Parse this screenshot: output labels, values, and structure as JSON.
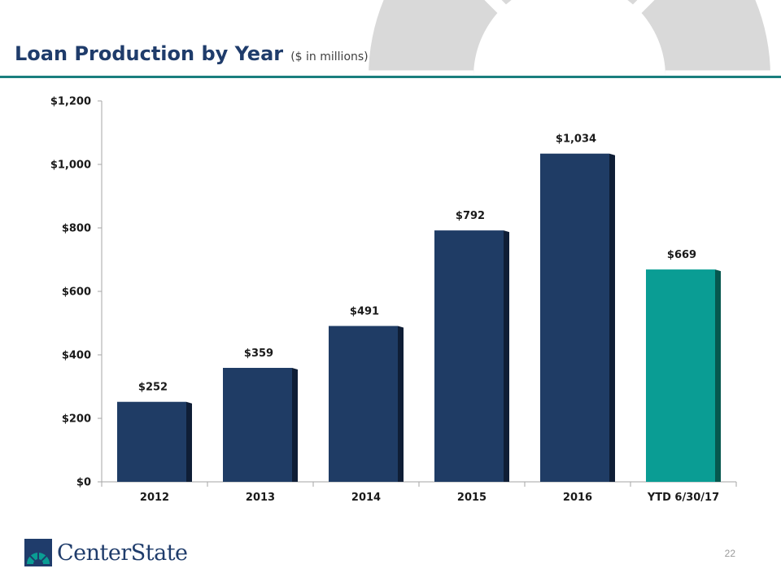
{
  "slide": {
    "title": "Loan Production by Year",
    "subtitle": "($ in millions)",
    "page_number": "22",
    "logo_text": "CenterState"
  },
  "colors": {
    "title": "#1f3c6b",
    "rule": "#1a7f7e",
    "bar_primary": "#1f3c65",
    "bar_primary_shade": "#0f1e36",
    "bar_highlight": "#0a9d94",
    "bar_highlight_shade": "#06574f",
    "decor": "#d9d9d9"
  },
  "chart_data": {
    "type": "bar",
    "title": "Loan Production by Year",
    "ylabel": "$ in millions",
    "xlabel": "",
    "categories": [
      "2012",
      "2013",
      "2014",
      "2015",
      "2016",
      "YTD 6/30/17"
    ],
    "values": [
      252,
      359,
      491,
      792,
      1034,
      669
    ],
    "value_labels": [
      "$252",
      "$359",
      "$491",
      "$792",
      "$1,034",
      "$669"
    ],
    "highlight_index": 5,
    "ylim": [
      0,
      1200
    ],
    "yticks": [
      0,
      200,
      400,
      600,
      800,
      1000,
      1200
    ],
    "ytick_labels": [
      "$0",
      "$200",
      "$400",
      "$600",
      "$800",
      "$1,000",
      "$1,200"
    ],
    "grid": false,
    "legend": "none"
  }
}
